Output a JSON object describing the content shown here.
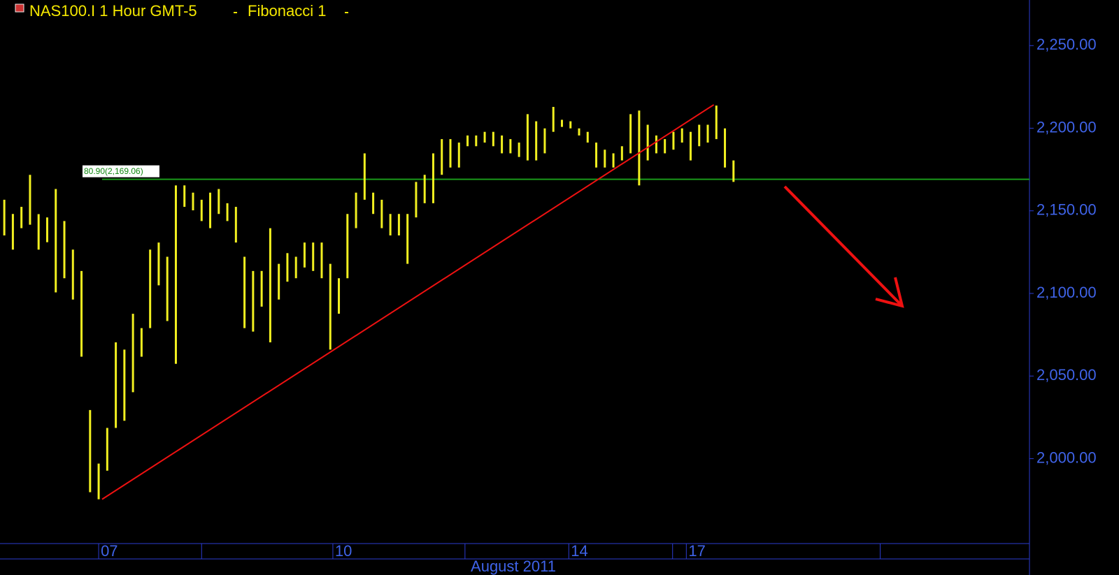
{
  "chart_data": {
    "type": "ohlc",
    "title": "NAS100.I 1 Hour GMT-5",
    "study": "Fibonacci 1",
    "period_label": "August 2011",
    "color": "#f2f020",
    "x": [
      0,
      1,
      2,
      3,
      4,
      5,
      6,
      7,
      8,
      9,
      10,
      11,
      12,
      13,
      14,
      15,
      16,
      17,
      18,
      19,
      20,
      21,
      22,
      23,
      24,
      25,
      26,
      27,
      28,
      29,
      30,
      31,
      32,
      33,
      34,
      35,
      36,
      37,
      38,
      39,
      40,
      41,
      42,
      43,
      44,
      45,
      46,
      47,
      48,
      49,
      50,
      51,
      52,
      53,
      54,
      55,
      56,
      57,
      58,
      59,
      60,
      61,
      62,
      63,
      64,
      65,
      66,
      67,
      68,
      69,
      70,
      71,
      72,
      73,
      74,
      75,
      76,
      77,
      78,
      79,
      80,
      81,
      82,
      83,
      84,
      85
    ],
    "high": [
      2156.7,
      2148.1,
      2152.4,
      2171.8,
      2148.0,
      2146.0,
      2163.2,
      2143.8,
      2126.5,
      2113.6,
      2029.4,
      1997.0,
      2018.6,
      2070.4,
      2066.0,
      2087.7,
      2079.0,
      2126.5,
      2130.8,
      2122.2,
      2165.4,
      2165.4,
      2161.0,
      2156.7,
      2161.0,
      2163.2,
      2154.6,
      2152.4,
      2122.2,
      2113.6,
      2113.6,
      2139.5,
      2117.9,
      2124.4,
      2122.2,
      2130.8,
      2130.8,
      2130.8,
      2117.9,
      2109.2,
      2148.1,
      2161.0,
      2184.8,
      2161.0,
      2156.7,
      2148.1,
      2148.1,
      2148.1,
      2167.5,
      2171.8,
      2184.8,
      2193.4,
      2193.4,
      2191.3,
      2195.6,
      2195.6,
      2197.8,
      2197.8,
      2195.6,
      2193.4,
      2191.3,
      2208.5,
      2204.2,
      2199.9,
      2212.9,
      2205.1,
      2204.2,
      2199.9,
      2197.8,
      2191.3,
      2187.0,
      2184.8,
      2189.1,
      2208.5,
      2210.7,
      2202.1,
      2195.6,
      2193.4,
      2197.8,
      2199.9,
      2197.8,
      2202.1,
      2202.1,
      2213.7,
      2199.9,
      2180.5
    ],
    "low": [
      2135.1,
      2126.5,
      2139.5,
      2141.6,
      2126.5,
      2131.0,
      2100.6,
      2109.2,
      2096.3,
      2061.7,
      1979.7,
      1975.4,
      1992.7,
      2018.6,
      2022.9,
      2040.2,
      2061.7,
      2079.0,
      2104.9,
      2083.3,
      2057.4,
      2152.4,
      2150.3,
      2143.8,
      2139.5,
      2148.1,
      2143.8,
      2130.8,
      2079.0,
      2076.9,
      2092.0,
      2070.4,
      2096.3,
      2107.1,
      2109.2,
      2115.7,
      2113.6,
      2109.2,
      2066.0,
      2087.7,
      2109.2,
      2139.5,
      2156.7,
      2148.1,
      2139.5,
      2135.1,
      2135.1,
      2117.9,
      2146.0,
      2154.6,
      2154.6,
      2171.8,
      2176.2,
      2176.2,
      2189.1,
      2189.1,
      2191.3,
      2189.1,
      2184.8,
      2184.8,
      2182.6,
      2180.5,
      2180.5,
      2184.8,
      2197.8,
      2200.8,
      2199.9,
      2195.6,
      2191.3,
      2176.2,
      2176.2,
      2176.2,
      2180.5,
      2184.8,
      2165.4,
      2180.5,
      2184.8,
      2184.8,
      2187.0,
      2191.3,
      2180.5,
      2189.1,
      2191.3,
      2193.4,
      2176.2,
      2167.5
    ],
    "xlim": [
      -0.5,
      119.5
    ],
    "ylim": [
      1948.6,
      2277.6
    ],
    "yticks": [
      {
        "value": 2000,
        "label": "2,000.00"
      },
      {
        "value": 2050,
        "label": "2,050.00"
      },
      {
        "value": 2100,
        "label": "2,100.00"
      },
      {
        "value": 2150,
        "label": "2,150.00"
      },
      {
        "value": 2200,
        "label": "2,200.00"
      },
      {
        "value": 2250,
        "label": "2,250.00"
      }
    ],
    "xticks": [
      {
        "value": 11,
        "label": "07"
      },
      {
        "value": 38.3,
        "label": "10"
      },
      {
        "value": 65.8,
        "label": "14"
      },
      {
        "value": 79.5,
        "label": "17"
      }
    ],
    "xseparators": [
      23,
      53.7,
      77.9,
      102.1
    ],
    "fibonacci": {
      "value": 2169.06,
      "label": "80.90(2,169.06)",
      "x": 11.4
    },
    "trendline": {
      "x": [
        11.4,
        82.7
      ],
      "y": [
        1975.4,
        2214.2
      ],
      "color": "#ee1111"
    }
  }
}
